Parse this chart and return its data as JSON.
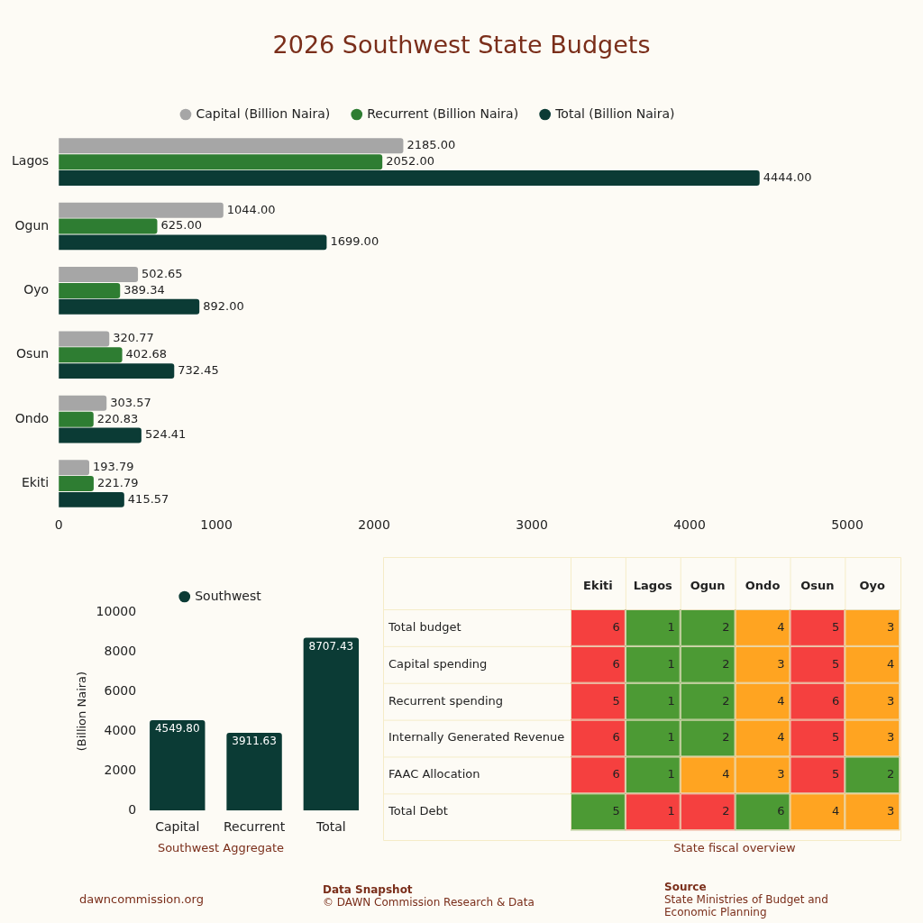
{
  "chart_data": [
    {
      "type": "bar",
      "title": "2026 Southwest State Budgets",
      "orientation": "horizontal",
      "categories": [
        "Lagos",
        "Ogun",
        "Oyo",
        "Osun",
        "Ondo",
        "Ekiti"
      ],
      "series": [
        {
          "name": "Capital (Billion Naira)",
          "color": "#a6a6a6",
          "values": [
            2185.0,
            1044.0,
            502.65,
            320.77,
            303.57,
            193.79
          ],
          "value_labels": [
            "2185.00",
            "1044.00",
            "502.65",
            "320.77",
            "303.57",
            "193.79"
          ]
        },
        {
          "name": "Recurrent (Billion Naira)",
          "color": "#2e7d32",
          "values": [
            2052.0,
            625.0,
            389.34,
            402.68,
            220.83,
            221.79
          ],
          "value_labels": [
            "2052.00",
            "625.00",
            "389.34",
            "402.68",
            "220.83",
            "221.79"
          ]
        },
        {
          "name": "Total (Billion Naira)",
          "color": "#0b3b35",
          "values": [
            4444.0,
            1699.0,
            892.0,
            732.45,
            524.41,
            415.57
          ],
          "value_labels": [
            "4444.00",
            "1699.00",
            "892.00",
            "732.45",
            "524.41",
            "415.57"
          ]
        }
      ],
      "xlim": [
        0,
        5000
      ],
      "xticks": [
        0,
        1000,
        2000,
        3000,
        4000,
        5000
      ],
      "grid": false,
      "legend": "top",
      "annotations": [
        "dawncommission.org",
        "Data Snapshot",
        "© DAWN Commission Research & Data",
        "Source",
        "State Ministries of Budget and Economic Planning"
      ]
    },
    {
      "type": "bar",
      "categories": [
        "Capital",
        "Recurrent",
        "Total"
      ],
      "xlabel": "Southwest Aggregate",
      "ylabel": "(Billion Naira)",
      "series": [
        {
          "name": "Southwest",
          "color": "#0b3b35",
          "values": [
            4549.8,
            3911.63,
            8707.43
          ],
          "value_labels": [
            "4549.80",
            "3911.63",
            "8707.43"
          ]
        }
      ],
      "ylim": [
        0,
        10000
      ],
      "yticks": [
        0,
        2000,
        4000,
        6000,
        8000,
        10000
      ],
      "grid": false,
      "legend": "top"
    },
    {
      "type": "heatmap",
      "xlabel": "State fiscal overview",
      "data_labels": true,
      "categories": [
        "Ekiti",
        "Lagos",
        "Ogun",
        "Ondo",
        "Osun",
        "Oyo"
      ],
      "y_categories": [
        "Total budget",
        "Capital spending",
        "Recurrent spending",
        "Internally Generated Revenue",
        "FAAC Allocation",
        "Total Debt"
      ],
      "cells": [
        [
          6,
          1,
          2,
          4,
          5,
          3
        ],
        [
          6,
          1,
          2,
          3,
          5,
          4
        ],
        [
          5,
          1,
          2,
          4,
          6,
          3
        ],
        [
          6,
          1,
          2,
          4,
          5,
          3
        ],
        [
          6,
          1,
          4,
          3,
          5,
          2
        ],
        [
          5,
          1,
          2,
          6,
          4,
          3
        ]
      ],
      "colors": [
        [
          "#f5403f",
          "#4c9a34",
          "#4c9a34",
          "#ffa421",
          "#f5403f",
          "#ffa421"
        ],
        [
          "#f5403f",
          "#4c9a34",
          "#4c9a34",
          "#ffa421",
          "#f5403f",
          "#ffa421"
        ],
        [
          "#f5403f",
          "#4c9a34",
          "#4c9a34",
          "#ffa421",
          "#f5403f",
          "#ffa421"
        ],
        [
          "#f5403f",
          "#4c9a34",
          "#4c9a34",
          "#ffa421",
          "#f5403f",
          "#ffa421"
        ],
        [
          "#f5403f",
          "#4c9a34",
          "#ffa421",
          "#ffa421",
          "#f5403f",
          "#4c9a34"
        ],
        [
          "#4c9a34",
          "#f5403f",
          "#f5403f",
          "#4c9a34",
          "#ffa421",
          "#ffa421"
        ]
      ]
    }
  ]
}
